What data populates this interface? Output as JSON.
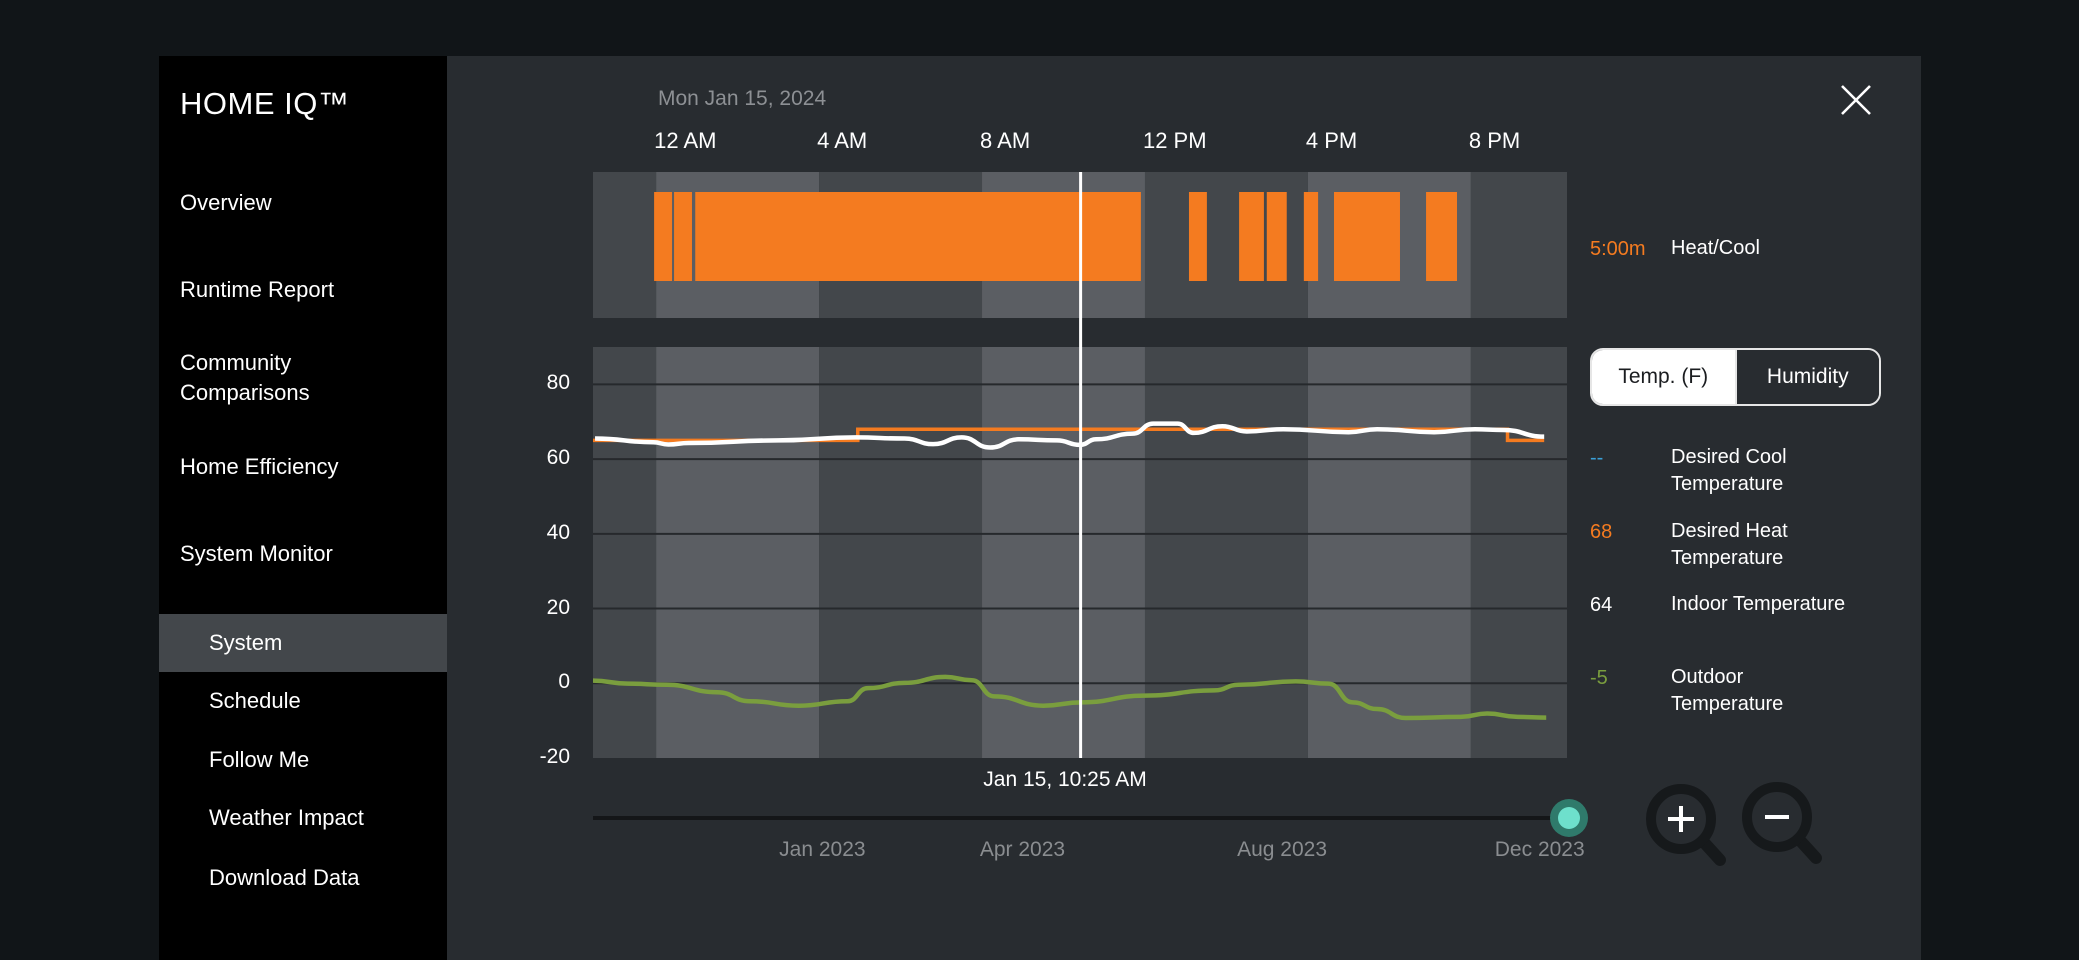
{
  "app": {
    "title": "HOME IQ™"
  },
  "sidebar": {
    "items": [
      {
        "label": "Overview"
      },
      {
        "label": "Runtime Report"
      },
      {
        "label": "Community Comparisons",
        "line1": "Community",
        "line2": "Comparisons"
      },
      {
        "label": "Home Efficiency"
      },
      {
        "label": "System Monitor"
      }
    ],
    "sub_items": [
      {
        "label": "System",
        "selected": true
      },
      {
        "label": "Schedule"
      },
      {
        "label": "Follow Me"
      },
      {
        "label": "Weather Impact"
      },
      {
        "label": "Download Data"
      }
    ]
  },
  "header": {
    "date": "Mon Jan 15, 2024",
    "close_icon": "close-icon"
  },
  "colors": {
    "heat": "#f47b20",
    "outdoor": "#7a9e3e",
    "indoor": "#ffffff",
    "cool": "#3aa0d8",
    "band_dark": "#43474b",
    "band_light": "#5b5e63"
  },
  "chart_data": [
    {
      "type": "bar",
      "title": "Heat/Cool runtime",
      "x_unit": "hour of day",
      "xlim": [
        -1.55,
        22.36
      ],
      "time_ticks": [
        {
          "hour": 0,
          "label": "12 AM"
        },
        {
          "hour": 4,
          "label": "4 AM"
        },
        {
          "hour": 8,
          "label": "8 AM"
        },
        {
          "hour": 12,
          "label": "12 PM"
        },
        {
          "hour": 16,
          "label": "4 PM"
        },
        {
          "hour": 20,
          "label": "8 PM"
        }
      ],
      "runtime_segments": [
        [
          -0.05,
          0.39
        ],
        [
          0.44,
          0.88
        ],
        [
          0.96,
          11.9
        ],
        [
          13.08,
          13.52
        ],
        [
          14.31,
          14.92
        ],
        [
          14.99,
          15.48
        ],
        [
          15.9,
          16.25
        ],
        [
          16.64,
          18.26
        ],
        [
          18.9,
          19.66
        ]
      ],
      "legend": {
        "value": "5:00m",
        "label": "Heat/Cool"
      }
    },
    {
      "type": "line",
      "ylim": [
        -20,
        90
      ],
      "yticks": [
        80,
        60,
        40,
        20,
        0,
        -20
      ],
      "xlim": [
        -1.55,
        22.36
      ],
      "grid": true,
      "series": [
        {
          "name": "Desired Heat Temperature",
          "step": true,
          "points": [
            [
              -1.55,
              65
            ],
            [
              4.95,
              65
            ],
            [
              4.95,
              68
            ],
            [
              20.9,
              68
            ],
            [
              20.9,
              65
            ],
            [
              21.8,
              65
            ]
          ]
        },
        {
          "name": "Indoor Temperature",
          "points": [
            [
              -1.5,
              65.5
            ],
            [
              -0.07,
              64.5
            ],
            [
              0.3,
              63.9
            ],
            [
              0.8,
              64.3
            ],
            [
              3.0,
              65
            ],
            [
              4.9,
              65.8
            ],
            [
              6.1,
              65.5
            ],
            [
              6.8,
              64.0
            ],
            [
              7.5,
              65.8
            ],
            [
              8.2,
              63.1
            ],
            [
              8.9,
              65.3
            ],
            [
              9.84,
              65
            ],
            [
              10.4,
              63.8
            ],
            [
              10.8,
              65.3
            ],
            [
              11.7,
              66.8
            ],
            [
              12.2,
              69.5
            ],
            [
              12.8,
              69.5
            ],
            [
              13.2,
              67.0
            ],
            [
              13.9,
              68.8
            ],
            [
              14.5,
              67.4
            ],
            [
              15.4,
              68
            ],
            [
              17.0,
              67.2
            ],
            [
              17.7,
              68
            ],
            [
              19.1,
              67.2
            ],
            [
              20.1,
              68
            ],
            [
              20.8,
              67.8
            ],
            [
              21.8,
              66
            ]
          ]
        },
        {
          "name": "Outdoor Temperature",
          "points": [
            [
              -1.55,
              0.7
            ],
            [
              -0.7,
              -0.1
            ],
            [
              0.25,
              -0.4
            ],
            [
              1.5,
              -2.4
            ],
            [
              2.3,
              -4.8
            ],
            [
              3.5,
              -6.0
            ],
            [
              4.7,
              -4.8
            ],
            [
              5.2,
              -1.3
            ],
            [
              6.1,
              0.1
            ],
            [
              7.1,
              1.7
            ],
            [
              7.75,
              0.8
            ],
            [
              8.3,
              -3.5
            ],
            [
              9.5,
              -6.0
            ],
            [
              10.45,
              -5.1
            ],
            [
              12.0,
              -3.3
            ],
            [
              13.7,
              -1.9
            ],
            [
              14.3,
              -0.4
            ],
            [
              15.7,
              0.5
            ],
            [
              16.5,
              -0.1
            ],
            [
              17.1,
              -5.1
            ],
            [
              17.7,
              -6.9
            ],
            [
              18.4,
              -9.3
            ],
            [
              19.75,
              -9.0
            ],
            [
              20.4,
              -8.1
            ],
            [
              21.15,
              -9.0
            ],
            [
              21.85,
              -9.2
            ]
          ]
        }
      ],
      "cursor": {
        "hour": 10.42,
        "label": "Jan 15, 10:25 AM"
      }
    }
  ],
  "toggle": {
    "options": [
      "Temp. (F)",
      "Humidity"
    ],
    "selected": "Temp. (F)"
  },
  "legend": [
    {
      "value": "--",
      "line1": "Desired Cool",
      "line2": "Temperature"
    },
    {
      "value": "68",
      "line1": "Desired Heat",
      "line2": "Temperature"
    },
    {
      "value": "64",
      "line1": "Indoor Temperature",
      "line2": ""
    },
    {
      "value": "-5",
      "line1": "Outdoor",
      "line2": "Temperature"
    }
  ],
  "timeline": {
    "months": [
      {
        "label": "Jan 2023",
        "frac": 0.235
      },
      {
        "label": "Apr 2023",
        "frac": 0.44
      },
      {
        "label": "Aug 2023",
        "frac": 0.706
      },
      {
        "label": "Dec 2023",
        "frac": 0.97
      }
    ],
    "position": 1.0
  },
  "zoom": {
    "in_icon": "zoom-in-icon",
    "out_icon": "zoom-out-icon"
  }
}
